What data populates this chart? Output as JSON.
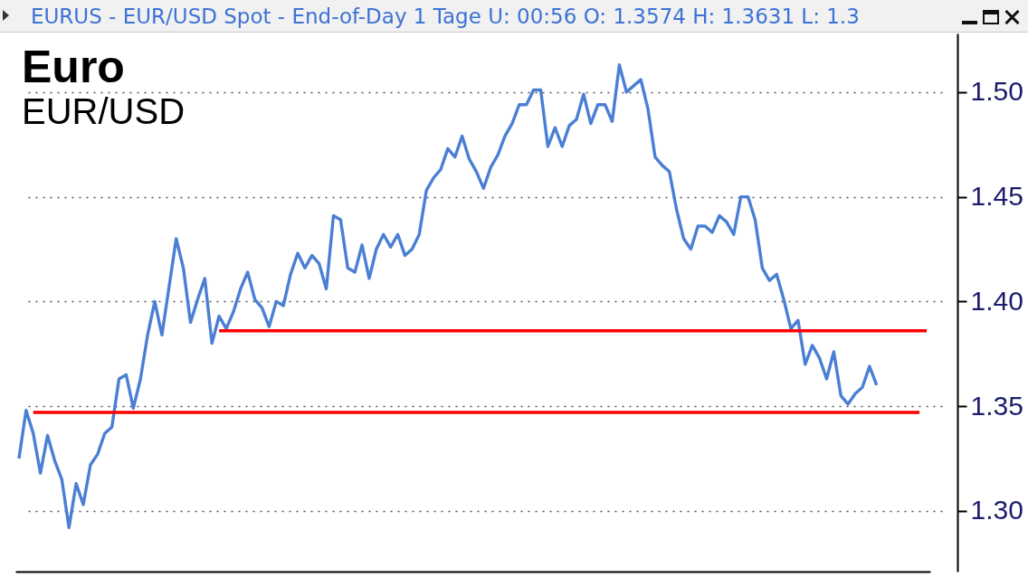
{
  "chart_data": {
    "type": "line",
    "title": "Euro",
    "subtitle": "EUR/USD",
    "annotations": [
      "EURUS - EUR/USD Spot - End-of-Day 1 Tage U: 00:56 O: 1.3574 H: 1.3631 L: 1.3"
    ],
    "categories": [
      null,
      null,
      null,
      null,
      null,
      null,
      null,
      null,
      null,
      null,
      null,
      null,
      null,
      null,
      null,
      null,
      null,
      null,
      null,
      null,
      null,
      null,
      null,
      null,
      null,
      null,
      null,
      null,
      null,
      null,
      null,
      null,
      null,
      null,
      null,
      null,
      null,
      null,
      null,
      null,
      null,
      null,
      null,
      null,
      null,
      null,
      null,
      null,
      null,
      null,
      null,
      null,
      null,
      null,
      null,
      null,
      null,
      null,
      null,
      null,
      null,
      null,
      null,
      null,
      null,
      null,
      null,
      null,
      null,
      null,
      null,
      null,
      null,
      null,
      null,
      null,
      null,
      null,
      null,
      null,
      null,
      null,
      null,
      null,
      null,
      null,
      null,
      null,
      null,
      null,
      null,
      null,
      null,
      null,
      null,
      null,
      null,
      null,
      null,
      null,
      null,
      null,
      null,
      null,
      null,
      null,
      null,
      null,
      null,
      null,
      null,
      null,
      null,
      null,
      null,
      null,
      null,
      null,
      null,
      null,
      null,
      null,
      null,
      null,
      null,
      null,
      null,
      null
    ],
    "ylim": [
      1.271,
      1.528
    ],
    "yticks": [
      {
        "value": 1.3,
        "label": "1.30"
      },
      1.35,
      {
        "value": 1.4,
        "label": "1.40"
      },
      1.45,
      {
        "value": 1.5,
        "label": "1.50"
      }
    ],
    "grid": "y",
    "tick_labels": "y",
    "series": [
      {
        "color": "#4a7fd4",
        "values": [
          1.325,
          1.348,
          1.337,
          1.318,
          1.336,
          1.324,
          1.315,
          1.292,
          1.313,
          1.303,
          1.322,
          1.327,
          1.337,
          1.34,
          1.363,
          1.365,
          1.349,
          1.363,
          1.384,
          1.4,
          1.384,
          1.407,
          1.43,
          1.416,
          1.39,
          1.401,
          1.411,
          1.38,
          1.393,
          1.387,
          1.395,
          1.406,
          1.414,
          1.401,
          1.397,
          1.388,
          1.4,
          1.398,
          1.413,
          1.423,
          1.416,
          1.422,
          1.418,
          1.406,
          1.441,
          1.439,
          1.416,
          1.414,
          1.427,
          1.411,
          1.425,
          1.432,
          1.426,
          1.432,
          1.422,
          1.425,
          1.432,
          1.453,
          1.459,
          1.463,
          1.473,
          1.469,
          1.479,
          1.468,
          1.462,
          1.454,
          1.464,
          1.47,
          1.479,
          1.485,
          1.494,
          1.494,
          1.501,
          1.501,
          1.474,
          1.483,
          1.474,
          1.484,
          1.487,
          1.499,
          1.485,
          1.494,
          1.494,
          1.486,
          1.513,
          1.5,
          1.503,
          1.506,
          1.492,
          1.469,
          1.465,
          1.462,
          1.444,
          1.43,
          1.425,
          1.436,
          1.436,
          1.433,
          1.441,
          1.438,
          1.432,
          1.45,
          1.45,
          1.439,
          1.416,
          1.41,
          1.413,
          1.401,
          1.387,
          1.391,
          1.37,
          1.379,
          1.373,
          1.363,
          1.376,
          1.355,
          1.351,
          1.356,
          1.359,
          1.369,
          1.36,
          null,
          null,
          null,
          null,
          null,
          null,
          null
        ]
      },
      {
        "color": "#ff0000",
        "values": [
          null,
          null,
          1.347,
          1.347,
          1.347,
          1.347,
          1.347,
          1.347,
          1.347,
          1.347,
          1.347,
          1.347,
          1.347,
          1.347,
          1.347,
          1.347,
          1.347,
          1.347,
          1.347,
          1.347,
          1.347,
          1.347,
          1.347,
          1.347,
          1.347,
          1.347,
          1.347,
          1.347,
          1.347,
          1.347,
          1.347,
          1.347,
          1.347,
          1.347,
          1.347,
          1.347,
          1.347,
          1.347,
          1.347,
          1.347,
          1.347,
          1.347,
          1.347,
          1.347,
          1.347,
          1.347,
          1.347,
          1.347,
          1.347,
          1.347,
          1.347,
          1.347,
          1.347,
          1.347,
          1.347,
          1.347,
          1.347,
          1.347,
          1.347,
          1.347,
          1.347,
          1.347,
          1.347,
          1.347,
          1.347,
          1.347,
          1.347,
          1.347,
          1.347,
          1.347,
          1.347,
          1.347,
          1.347,
          1.347,
          1.347,
          1.347,
          1.347,
          1.347,
          1.347,
          1.347,
          1.347,
          1.347,
          1.347,
          1.347,
          1.347,
          1.347,
          1.347,
          1.347,
          1.347,
          1.347,
          1.347,
          1.347,
          1.347,
          1.347,
          1.347,
          1.347,
          1.347,
          1.347,
          1.347,
          1.347,
          1.347,
          1.347,
          1.347,
          1.347,
          1.347,
          1.347,
          1.347,
          1.347,
          1.347,
          1.347,
          1.347,
          1.347,
          1.347,
          1.347,
          1.347,
          1.347,
          1.347,
          1.347,
          1.347,
          1.347,
          1.347,
          1.347,
          1.347,
          1.347,
          1.347,
          1.347,
          1.347,
          null
        ]
      },
      {
        "color": "#ff0000",
        "values": [
          null,
          null,
          null,
          null,
          null,
          null,
          null,
          null,
          null,
          null,
          null,
          null,
          null,
          null,
          null,
          null,
          null,
          null,
          null,
          null,
          null,
          null,
          null,
          null,
          null,
          null,
          null,
          null,
          1.386,
          1.386,
          1.386,
          1.386,
          1.386,
          1.386,
          1.386,
          1.386,
          1.386,
          1.386,
          1.386,
          1.386,
          1.386,
          1.386,
          1.386,
          1.386,
          1.386,
          1.386,
          1.386,
          1.386,
          1.386,
          1.386,
          1.386,
          1.386,
          1.386,
          1.386,
          1.386,
          1.386,
          1.386,
          1.386,
          1.386,
          1.386,
          1.386,
          1.386,
          1.386,
          1.386,
          1.386,
          1.386,
          1.386,
          1.386,
          1.386,
          1.386,
          1.386,
          1.386,
          1.386,
          1.386,
          1.386,
          1.386,
          1.386,
          1.386,
          1.386,
          1.386,
          1.386,
          1.386,
          1.386,
          1.386,
          1.386,
          1.386,
          1.386,
          1.386,
          1.386,
          1.386,
          1.386,
          1.386,
          1.386,
          1.386,
          1.386,
          1.386,
          1.386,
          1.386,
          1.386,
          1.386,
          1.386,
          1.386,
          1.386,
          1.386,
          1.386,
          1.386,
          1.386,
          1.386,
          1.386,
          1.386,
          1.386,
          1.386,
          1.386,
          1.386,
          1.386,
          1.386,
          1.386,
          1.386,
          1.386,
          1.386,
          1.386,
          1.386,
          1.386,
          1.386,
          1.386,
          1.386,
          1.386,
          1.386
        ]
      }
    ]
  }
}
